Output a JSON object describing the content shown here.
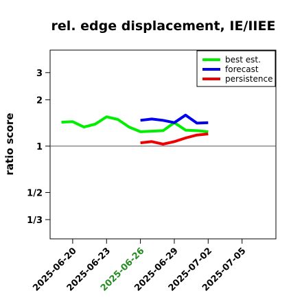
{
  "chart_data": {
    "type": "line",
    "title": "rel. edge displacement, IE/IIEE",
    "ylabel": "ratio score",
    "yscale": "log",
    "y_ticks": [
      {
        "value": 3,
        "label": "3"
      },
      {
        "value": 2,
        "label": "2"
      },
      {
        "value": 1,
        "label": "1"
      },
      {
        "value": 0.5,
        "label": "1/2"
      },
      {
        "value": 0.3333,
        "label": "1/3"
      }
    ],
    "ylim": [
      0.25,
      4.2
    ],
    "xlim": [
      "2025-06-18",
      "2025-07-08"
    ],
    "x_ticks": [
      {
        "value": "2025-06-20",
        "label": "2025-06-20",
        "color": "#000000"
      },
      {
        "value": "2025-06-23",
        "label": "2025-06-23",
        "color": "#000000"
      },
      {
        "value": "2025-06-26",
        "label": "2025-06-26",
        "color": "#228b22"
      },
      {
        "value": "2025-06-29",
        "label": "2025-06-29",
        "color": "#000000"
      },
      {
        "value": "2025-07-02",
        "label": "2025-07-02",
        "color": "#000000"
      },
      {
        "value": "2025-07-05",
        "label": "2025-07-05",
        "color": "#000000"
      }
    ],
    "reference_line": 1,
    "grid": false,
    "legend_position": "top-right",
    "series": [
      {
        "name": "best est.",
        "color": "#00ee00",
        "x": [
          "2025-06-19",
          "2025-06-20",
          "2025-06-21",
          "2025-06-22",
          "2025-06-23",
          "2025-06-24",
          "2025-06-25",
          "2025-06-26",
          "2025-06-27",
          "2025-06-28",
          "2025-06-29",
          "2025-06-30",
          "2025-07-01",
          "2025-07-02"
        ],
        "values": [
          1.43,
          1.44,
          1.33,
          1.39,
          1.55,
          1.49,
          1.33,
          1.24,
          1.25,
          1.26,
          1.42,
          1.27,
          1.26,
          1.24
        ]
      },
      {
        "name": "forecast",
        "color": "#0000ee",
        "x": [
          "2025-06-26",
          "2025-06-27",
          "2025-06-28",
          "2025-06-29",
          "2025-06-30",
          "2025-07-01",
          "2025-07-02"
        ],
        "values": [
          1.47,
          1.5,
          1.47,
          1.42,
          1.59,
          1.41,
          1.42
        ]
      },
      {
        "name": "persistence",
        "color": "#ee0000",
        "x": [
          "2025-06-26",
          "2025-06-27",
          "2025-06-28",
          "2025-06-29",
          "2025-06-30",
          "2025-07-01",
          "2025-07-02"
        ],
        "values": [
          1.05,
          1.07,
          1.03,
          1.07,
          1.13,
          1.18,
          1.2
        ]
      }
    ]
  }
}
